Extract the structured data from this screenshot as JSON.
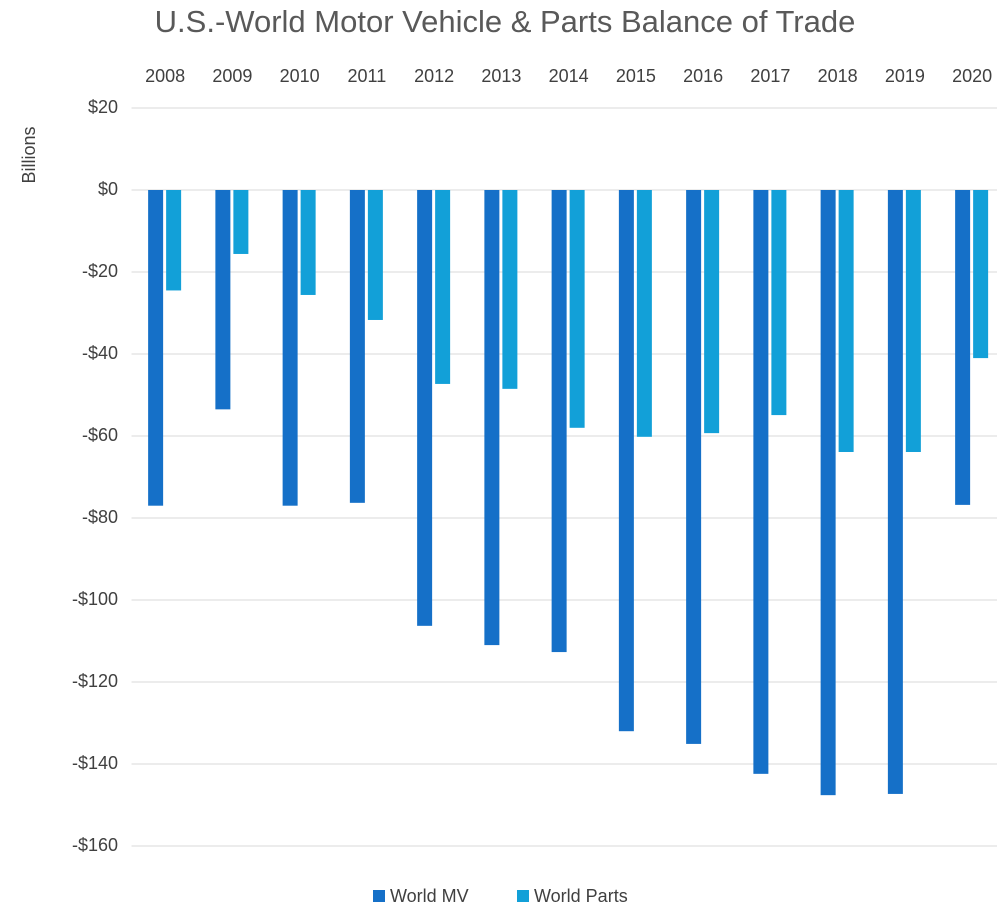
{
  "chart_data": {
    "type": "bar",
    "title": "U.S.-World Motor Vehicle & Parts Balance of Trade",
    "y_label": "Billions",
    "categories": [
      "2008",
      "2009",
      "2010",
      "2011",
      "2012",
      "2013",
      "2014",
      "2015",
      "2016",
      "2017",
      "2018",
      "2019",
      "2020"
    ],
    "series": [
      {
        "name": "World MV",
        "color": "#1570c8",
        "values": [
          -77,
          -53.5,
          -77,
          -76.3,
          -106.3,
          -111,
          -112.7,
          -132,
          -135.1,
          -142.4,
          -147.6,
          -147.3,
          -76.8
        ]
      },
      {
        "name": "World Parts",
        "color": "#12a0d8",
        "values": [
          -24.5,
          -15.6,
          -25.6,
          -31.7,
          -47.3,
          -48.5,
          -58,
          -60.2,
          -59.3,
          -54.9,
          -63.9,
          -63.9,
          -41
        ]
      }
    ],
    "ylim": [
      -160,
      20
    ],
    "yticks": [
      {
        "value": 20,
        "label": "$20"
      },
      {
        "value": 0,
        "label": "$0"
      },
      {
        "value": -20,
        "label": "-$20"
      },
      {
        "value": -40,
        "label": "-$40"
      },
      {
        "value": -60,
        "label": "-$60"
      },
      {
        "value": -80,
        "label": "-$80"
      },
      {
        "value": -100,
        "label": "-$100"
      },
      {
        "value": -120,
        "label": "-$120"
      },
      {
        "value": -140,
        "label": "-$140"
      },
      {
        "value": -160,
        "label": "-$160"
      }
    ],
    "grid": true,
    "legend": "bottom"
  }
}
